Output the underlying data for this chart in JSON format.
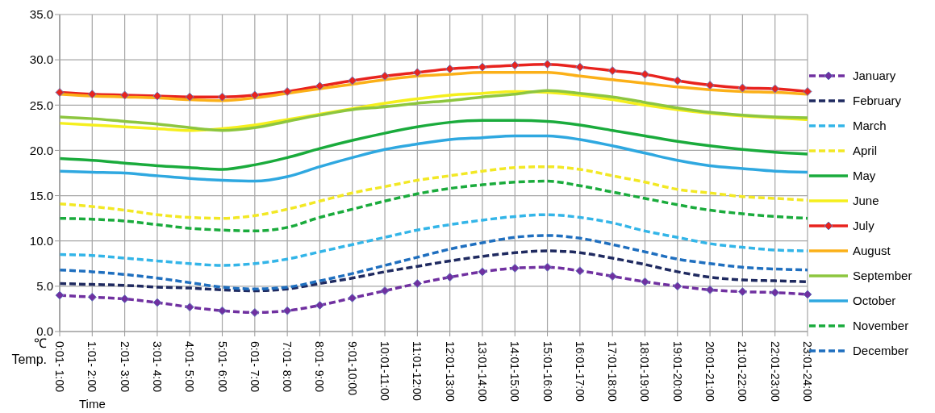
{
  "chart_data": {
    "type": "line",
    "xlabel": "Time",
    "ylabel": "℃ Temp.",
    "categories": [
      "0:01- 1:00",
      "1:01- 2:00",
      "2:01- 3:00",
      "3:01- 4:00",
      "4:01- 5:00",
      "5:01- 6:00",
      "6:01- 7:00",
      "7:01- 8:00",
      "8:01- 9:00",
      "9:01-10:00",
      "10:01-11:00",
      "11:01-12:00",
      "12:01-13:00",
      "13:01-14:00",
      "14:01-15:00",
      "15:01-16:00",
      "16:01-17:00",
      "17:01-18:00",
      "18:01-19:00",
      "19:01-20:00",
      "20:01-21:00",
      "21:01-22:00",
      "22:01-23:00",
      "23:01-24:00"
    ],
    "ylim": [
      0,
      35
    ],
    "yticks": [
      {
        "value": 0,
        "label": "0.0"
      },
      {
        "value": 5,
        "label": "5.0"
      },
      {
        "value": 10,
        "label": "10.0"
      },
      {
        "value": 15,
        "label": "15.0"
      },
      {
        "value": 20,
        "label": "20.0"
      },
      {
        "value": 25,
        "label": "25.0"
      },
      {
        "value": 30,
        "label": "30.0"
      },
      {
        "value": 35,
        "label": "35.0"
      }
    ],
    "grid": true,
    "legend": "right",
    "marker": "none",
    "series": [
      {
        "name": "January",
        "color": "#7030a0",
        "line_style": "dashed",
        "marker": "diamond",
        "values": [
          4.0,
          3.8,
          3.6,
          3.2,
          2.7,
          2.3,
          2.1,
          2.3,
          2.9,
          3.7,
          4.5,
          5.3,
          6.0,
          6.6,
          7.0,
          7.1,
          6.7,
          6.1,
          5.5,
          5.0,
          4.6,
          4.4,
          4.3,
          4.1
        ]
      },
      {
        "name": "February",
        "color": "#1f2a60",
        "line_style": "dashed",
        "values": [
          5.3,
          5.2,
          5.1,
          4.9,
          4.8,
          4.6,
          4.5,
          4.7,
          5.3,
          5.9,
          6.6,
          7.2,
          7.8,
          8.3,
          8.7,
          8.9,
          8.7,
          8.1,
          7.4,
          6.6,
          6.0,
          5.7,
          5.6,
          5.5
        ]
      },
      {
        "name": "March",
        "color": "#33b5e8",
        "line_style": "dashed",
        "values": [
          8.5,
          8.4,
          8.1,
          7.8,
          7.5,
          7.3,
          7.5,
          8.0,
          8.8,
          9.6,
          10.4,
          11.2,
          11.8,
          12.3,
          12.7,
          12.9,
          12.6,
          12.0,
          11.1,
          10.4,
          9.7,
          9.3,
          9.0,
          8.9
        ]
      },
      {
        "name": "April",
        "color": "#f2e824",
        "line_style": "dashed",
        "values": [
          14.1,
          13.8,
          13.4,
          12.9,
          12.6,
          12.5,
          12.8,
          13.5,
          14.4,
          15.3,
          16.0,
          16.7,
          17.2,
          17.7,
          18.1,
          18.2,
          17.9,
          17.2,
          16.5,
          15.7,
          15.3,
          14.9,
          14.7,
          14.5
        ]
      },
      {
        "name": "May",
        "color": "#1aab3c",
        "line_style": "solid",
        "values": [
          19.1,
          18.9,
          18.6,
          18.3,
          18.1,
          17.9,
          18.4,
          19.2,
          20.2,
          21.1,
          21.9,
          22.6,
          23.1,
          23.3,
          23.3,
          23.2,
          22.8,
          22.2,
          21.6,
          21.0,
          20.5,
          20.1,
          19.8,
          19.6
        ]
      },
      {
        "name": "June",
        "color": "#f5ef1d",
        "line_style": "solid",
        "values": [
          23.0,
          22.8,
          22.6,
          22.4,
          22.2,
          22.4,
          22.8,
          23.4,
          24.0,
          24.6,
          25.2,
          25.7,
          26.1,
          26.3,
          26.5,
          26.4,
          26.1,
          25.6,
          25.0,
          24.5,
          24.1,
          23.8,
          23.6,
          23.4
        ]
      },
      {
        "name": "July",
        "color": "#e8231e",
        "line_style": "solid",
        "marker": "diamond",
        "values": [
          26.4,
          26.2,
          26.1,
          26.0,
          25.9,
          25.9,
          26.1,
          26.5,
          27.1,
          27.7,
          28.2,
          28.6,
          29.0,
          29.2,
          29.4,
          29.5,
          29.2,
          28.8,
          28.4,
          27.7,
          27.2,
          26.9,
          26.8,
          26.5
        ]
      },
      {
        "name": "August",
        "color": "#fbb018",
        "line_style": "solid",
        "values": [
          26.2,
          26.0,
          25.9,
          25.8,
          25.6,
          25.5,
          25.8,
          26.3,
          26.8,
          27.3,
          27.8,
          28.2,
          28.4,
          28.6,
          28.6,
          28.6,
          28.2,
          27.8,
          27.4,
          27.0,
          26.7,
          26.5,
          26.4,
          26.2
        ]
      },
      {
        "name": "September",
        "color": "#8dc63f",
        "line_style": "solid",
        "values": [
          23.7,
          23.5,
          23.2,
          22.9,
          22.5,
          22.2,
          22.5,
          23.2,
          23.9,
          24.5,
          24.8,
          25.2,
          25.5,
          25.9,
          26.2,
          26.6,
          26.3,
          25.9,
          25.3,
          24.7,
          24.2,
          23.9,
          23.7,
          23.6
        ]
      },
      {
        "name": "October",
        "color": "#2fa8e0",
        "line_style": "solid",
        "values": [
          17.7,
          17.6,
          17.5,
          17.2,
          16.9,
          16.7,
          16.6,
          17.1,
          18.2,
          19.2,
          20.1,
          20.7,
          21.2,
          21.4,
          21.6,
          21.6,
          21.2,
          20.5,
          19.7,
          18.9,
          18.3,
          18.0,
          17.7,
          17.6
        ]
      },
      {
        "name": "November",
        "color": "#1aab3c",
        "line_style": "dashed",
        "values": [
          12.5,
          12.4,
          12.2,
          11.8,
          11.4,
          11.2,
          11.1,
          11.5,
          12.6,
          13.5,
          14.4,
          15.2,
          15.8,
          16.2,
          16.5,
          16.6,
          16.1,
          15.4,
          14.7,
          14.0,
          13.4,
          13.0,
          12.7,
          12.5
        ]
      },
      {
        "name": "December",
        "color": "#1f6fbf",
        "line_style": "dashed",
        "values": [
          6.8,
          6.6,
          6.3,
          5.9,
          5.4,
          4.9,
          4.7,
          4.9,
          5.6,
          6.4,
          7.3,
          8.2,
          9.1,
          9.8,
          10.4,
          10.6,
          10.3,
          9.6,
          8.8,
          8.0,
          7.5,
          7.1,
          6.9,
          6.8
        ]
      }
    ]
  }
}
